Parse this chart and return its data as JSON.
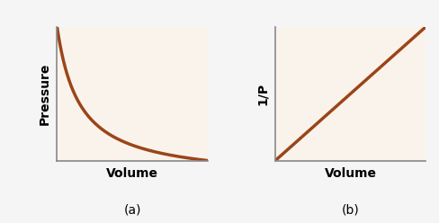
{
  "bg_color": "#faf3ec",
  "outer_bg": "#f5f5f5",
  "line_color": "#9b4519",
  "line_width": 2.5,
  "label_a": "(a)",
  "label_b": "(b)",
  "xlabel_a": "Volume",
  "xlabel_b": "Volume",
  "ylabel_a": "Pressure",
  "ylabel_b": "1/P",
  "axis_label_fontsize": 10,
  "sublabel_fontsize": 10,
  "spine_color": "#888888",
  "spine_linewidth": 1.2
}
